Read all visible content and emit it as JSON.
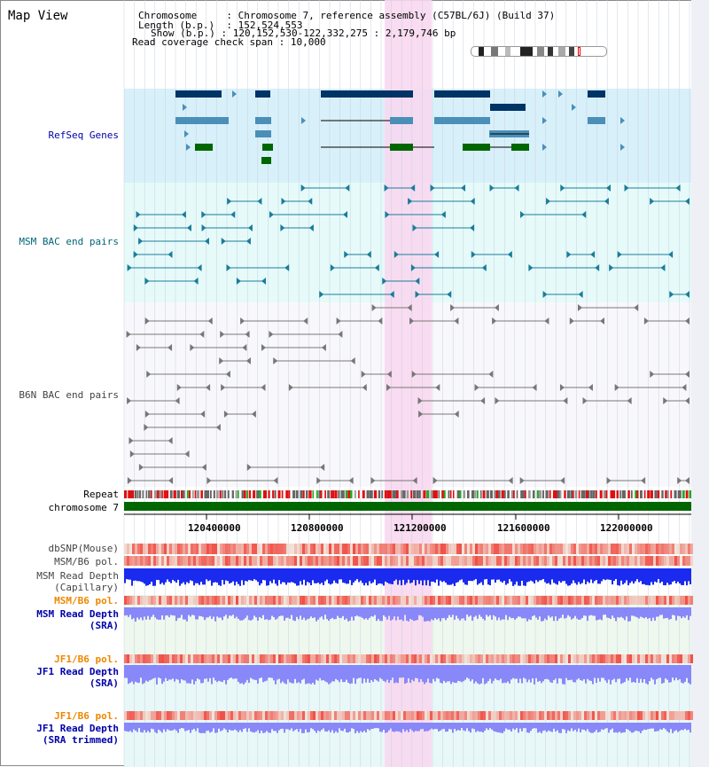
{
  "title": "Map View",
  "info": {
    "chromosome_key": "Chromosome",
    "chromosome_val": "Chromosome 7, reference assembly (C57BL/6J) (Build 37)",
    "length_key": "Length (b.p.)",
    "length_val": "152,524,553",
    "show_key": "Show (b.p.)",
    "show_val": "120,152,530-122,332,275 : 2,179,746 bp",
    "coverage_key": "Read coverage check span",
    "coverage_val": "10,000"
  },
  "tracks": {
    "refseq": "RefSeq Genes",
    "msm_bac": "MSM BAC end pairs",
    "b6n_bac": "B6N BAC end pairs",
    "repeat": "Repeat",
    "chromosome": "chromosome 7",
    "dbsnp": "dbSNP(Mouse)",
    "msm_b6_pol": "MSM/B6 pol.",
    "msm_depth_cap_1": "MSM Read Depth",
    "msm_depth_cap_2": "(Capillary)",
    "msm_b6_pol2": "MSM/B6 pol.",
    "msm_depth_sra_1": "MSM Read Depth",
    "msm_depth_sra_2": "(SRA)",
    "jf1_b6_pol": "JF1/B6 pol.",
    "jf1_depth_sra_1": "JF1 Read Depth",
    "jf1_depth_sra_2": "(SRA)",
    "jf1_b6_pol2": "JF1/B6 pol.",
    "jf1_depth_trim_1": "JF1 Read Depth",
    "jf1_depth_trim_2": "(SRA trimmed)"
  },
  "axis": {
    "ticks": [
      "120400000",
      "120800000",
      "121200000",
      "121600000",
      "122000000"
    ]
  },
  "colors": {
    "refseq_bg": "#d8f0fa",
    "msm_bg": "#e6fafa",
    "b6n_bg": "#f8f8fc",
    "highlight": "#f8d8f0",
    "chromosome": "#006600",
    "label_blue": "#0000aa",
    "label_teal": "#006677",
    "label_orange": "#ee8800",
    "label_gray": "#444444",
    "depth_dark": "#1a2aee",
    "depth_light": "#8888f8"
  }
}
